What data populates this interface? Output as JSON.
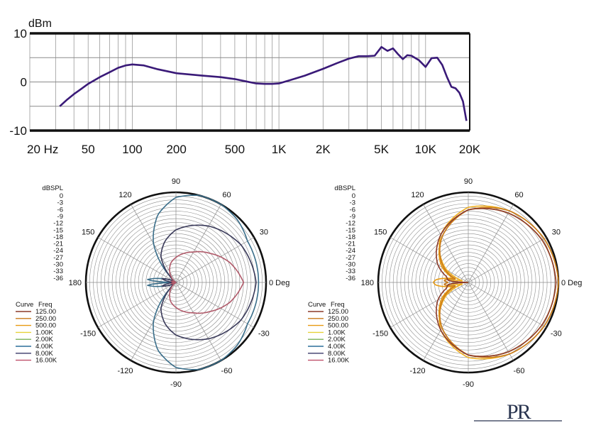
{
  "chart_data": [
    {
      "type": "line",
      "ylabel": "dBm",
      "xscale": "log",
      "xlim": [
        20,
        20000
      ],
      "ylim": [
        -10,
        10
      ],
      "y_ticks": [
        "10",
        "0",
        "-10"
      ],
      "x_ticks": [
        {
          "value": 20,
          "label": "20 Hz"
        },
        {
          "value": 50,
          "label": "50"
        },
        {
          "value": 100,
          "label": "100"
        },
        {
          "value": 200,
          "label": "200"
        },
        {
          "value": 500,
          "label": "500"
        },
        {
          "value": 1000,
          "label": "1K"
        },
        {
          "value": 2000,
          "label": "2K"
        },
        {
          "value": 5000,
          "label": "5K"
        },
        {
          "value": 10000,
          "label": "10K"
        },
        {
          "value": 20000,
          "label": "20K"
        }
      ],
      "grid": true,
      "line_color": "#3a1a78",
      "series": [
        {
          "x": [
            32,
            36,
            40,
            45,
            50,
            60,
            70,
            80,
            90,
            100,
            120,
            150,
            200,
            300,
            400,
            500,
            600,
            700,
            800,
            900,
            1000,
            1200,
            1500,
            2000,
            2500,
            3000,
            3500,
            4000,
            4500,
            5000,
            5500,
            6000,
            6500,
            7000,
            7500,
            8000,
            9000,
            10000,
            11000,
            12000,
            13000,
            14000,
            15000,
            16000,
            17000,
            18000,
            19000
          ],
          "y": [
            -5.0,
            -3.6,
            -2.5,
            -1.4,
            -0.4,
            1.0,
            2.0,
            2.9,
            3.4,
            3.6,
            3.4,
            2.6,
            1.8,
            1.3,
            1.0,
            0.6,
            0.1,
            -0.3,
            -0.4,
            -0.4,
            -0.3,
            0.4,
            1.3,
            2.7,
            3.9,
            4.8,
            5.3,
            5.3,
            5.4,
            7.2,
            6.4,
            6.9,
            5.7,
            4.7,
            5.5,
            5.4,
            4.5,
            3.1,
            4.9,
            5.0,
            3.5,
            1.0,
            -1.0,
            -1.3,
            -2.2,
            -4.0,
            -8.0
          ]
        }
      ]
    },
    {
      "type": "polar",
      "radial_label": "dBSPL",
      "radial_ticks": [
        "0",
        "-3",
        "-6",
        "-9",
        "-12",
        "-15",
        "-18",
        "-21",
        "-24",
        "-27",
        "-30",
        "-33",
        "-36"
      ],
      "angle_labels": [
        {
          "deg": 0,
          "label": "0 Deg"
        },
        {
          "deg": 30,
          "label": "30"
        },
        {
          "deg": 60,
          "label": "60"
        },
        {
          "deg": 90,
          "label": "90"
        },
        {
          "deg": 120,
          "label": "120"
        },
        {
          "deg": 150,
          "label": "150"
        },
        {
          "deg": 180,
          "label": "180"
        },
        {
          "deg": -150,
          "label": "-150"
        },
        {
          "deg": -120,
          "label": "-120"
        },
        {
          "deg": -90,
          "label": "-90"
        },
        {
          "deg": -60,
          "label": "-60"
        },
        {
          "deg": -30,
          "label": "-30"
        }
      ],
      "legend_header": {
        "curve": "Curve",
        "freq": "Freq"
      },
      "legend": [
        {
          "freq": "125.00",
          "color": "#8b3a2a"
        },
        {
          "freq": "250.00",
          "color": "#c87a1a"
        },
        {
          "freq": "500.00",
          "color": "#e89a10"
        },
        {
          "freq": "1.00K",
          "color": "#e6d23a"
        },
        {
          "freq": "2.00K",
          "color": "#7ab05a"
        },
        {
          "freq": "4.00K",
          "color": "#2a6e9a"
        },
        {
          "freq": "8.00K",
          "color": "#3a3a6a"
        },
        {
          "freq": "16.00K",
          "color": "#c0506a"
        }
      ],
      "series": [
        {
          "name": "4.00K",
          "color": "#3a6e8a",
          "angles": [
            0,
            30,
            45,
            60,
            75,
            90,
            105,
            120,
            135,
            150,
            165,
            175,
            180
          ],
          "db": [
            -3,
            -3,
            -1,
            0,
            0,
            -2,
            -8,
            -18,
            -33,
            -36,
            -30,
            -24,
            -36
          ]
        },
        {
          "name": "8.00K",
          "color": "#3a3a5a",
          "angles": [
            0,
            30,
            60,
            90,
            105,
            120,
            135,
            150,
            165,
            180
          ],
          "db": [
            -4,
            -6,
            -10,
            -15,
            -19,
            -24,
            -33,
            -36,
            -30,
            -36
          ]
        },
        {
          "name": "16.00K",
          "color": "#b05a6a",
          "angles": [
            0,
            20,
            40,
            60,
            75,
            90,
            105,
            120,
            135,
            150,
            165,
            180
          ],
          "db": [
            -9,
            -13,
            -18,
            -22,
            -24,
            -26,
            -28,
            -31,
            -34,
            -36,
            -34,
            -36
          ]
        }
      ]
    },
    {
      "type": "polar",
      "radial_label": "dBSPL",
      "radial_ticks": [
        "0",
        "-3",
        "-6",
        "-9",
        "-12",
        "-15",
        "-18",
        "-21",
        "-24",
        "-27",
        "-30",
        "-33",
        "-36"
      ],
      "angle_labels": [
        {
          "deg": 0,
          "label": "0 Deg"
        },
        {
          "deg": 30,
          "label": "30"
        },
        {
          "deg": 60,
          "label": "60"
        },
        {
          "deg": 90,
          "label": "90"
        },
        {
          "deg": 120,
          "label": "120"
        },
        {
          "deg": 150,
          "label": "150"
        },
        {
          "deg": 180,
          "label": "180"
        },
        {
          "deg": -150,
          "label": "-150"
        },
        {
          "deg": -120,
          "label": "-120"
        },
        {
          "deg": -90,
          "label": "-90"
        },
        {
          "deg": -60,
          "label": "-60"
        },
        {
          "deg": -30,
          "label": "-30"
        }
      ],
      "legend_header": {
        "curve": "Curve",
        "freq": "Freq"
      },
      "legend": [
        {
          "freq": "125.00",
          "color": "#8b3a2a"
        },
        {
          "freq": "250.00",
          "color": "#c87a1a"
        },
        {
          "freq": "500.00",
          "color": "#e89a10"
        },
        {
          "freq": "1.00K",
          "color": "#e6d23a"
        },
        {
          "freq": "2.00K",
          "color": "#7ab05a"
        },
        {
          "freq": "4.00K",
          "color": "#2a6e9a"
        },
        {
          "freq": "8.00K",
          "color": "#3a3a6a"
        },
        {
          "freq": "16.00K",
          "color": "#c0506a"
        }
      ],
      "series": [
        {
          "name": "1.00K",
          "color": "#f0b020",
          "angles": [
            0,
            30,
            60,
            90,
            120,
            150,
            165,
            175,
            180
          ],
          "db": [
            0,
            -1,
            -3,
            -6,
            -14,
            -26,
            -34,
            -28,
            -36
          ]
        },
        {
          "name": "500.00",
          "color": "#e89a10",
          "angles": [
            0,
            30,
            60,
            90,
            120,
            150,
            165,
            175,
            180
          ],
          "db": [
            -1,
            -2,
            -4,
            -7,
            -15,
            -24,
            -30,
            -23,
            -22
          ]
        },
        {
          "name": "250.00",
          "color": "#c87a1a",
          "angles": [
            0,
            30,
            60,
            90,
            120,
            150,
            165,
            175,
            180
          ],
          "db": [
            0,
            -1,
            -3,
            -7,
            -15,
            -25,
            -31,
            -26,
            -28
          ]
        },
        {
          "name": "125.00",
          "color": "#8b3a2a",
          "angles": [
            0,
            30,
            60,
            90,
            120,
            150,
            165,
            175,
            180
          ],
          "db": [
            -1,
            -2,
            -4,
            -7,
            -14,
            -22,
            -27,
            -28,
            -36
          ]
        }
      ]
    }
  ],
  "logo": {
    "text": "PR"
  }
}
